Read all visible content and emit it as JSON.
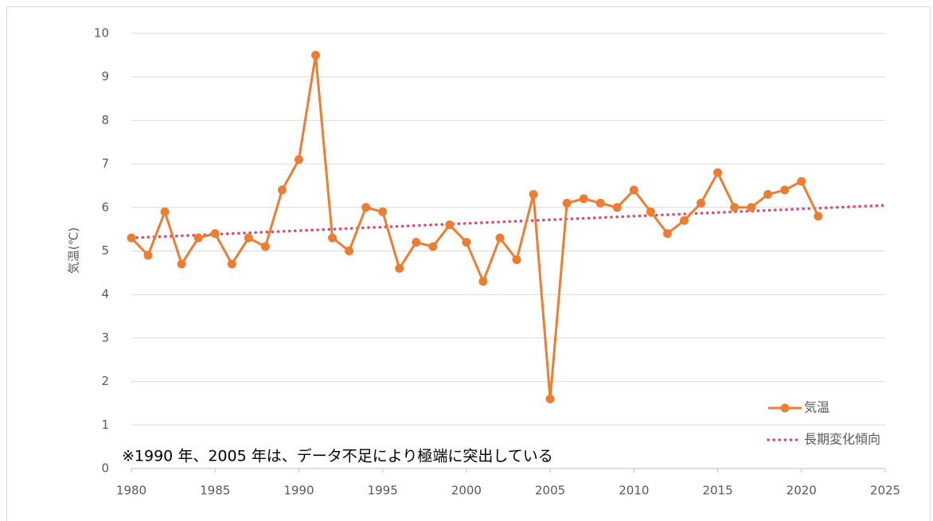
{
  "chart_data": {
    "type": "line",
    "y_label": "気温(℃)",
    "annotation": "※1990 年、2005 年は、データ不足により極端に突出している",
    "x": [
      1980,
      1981,
      1982,
      1983,
      1984,
      1985,
      1986,
      1987,
      1988,
      1989,
      1990,
      1991,
      1992,
      1993,
      1994,
      1995,
      1996,
      1997,
      1998,
      1999,
      2000,
      2001,
      2002,
      2003,
      2004,
      2005,
      2006,
      2007,
      2008,
      2009,
      2010,
      2011,
      2012,
      2013,
      2014,
      2015,
      2016,
      2017,
      2018,
      2019,
      2020,
      2021
    ],
    "series": [
      {
        "name": "気温",
        "color": "#ed7d31",
        "style": "solid",
        "markers": true,
        "values": [
          5.3,
          4.9,
          5.9,
          4.7,
          5.3,
          5.4,
          4.7,
          5.3,
          5.1,
          6.4,
          7.1,
          9.5,
          5.3,
          5.0,
          6.0,
          5.9,
          4.6,
          5.2,
          5.1,
          5.6,
          5.2,
          4.3,
          5.3,
          4.8,
          6.3,
          1.6,
          6.1,
          6.2,
          6.1,
          6.0,
          6.4,
          5.9,
          5.4,
          5.7,
          6.1,
          6.8,
          6.0,
          6.0,
          6.3,
          6.4,
          6.6,
          5.8
        ]
      },
      {
        "name": "長期変化傾向",
        "color": "#e8436a",
        "style": "dotted",
        "markers": false,
        "x": [
          1980,
          2025
        ],
        "values": [
          5.3,
          6.05
        ]
      }
    ],
    "xlim": [
      1980,
      2025
    ],
    "xticks": [
      1980,
      1985,
      1990,
      1995,
      2000,
      2005,
      2010,
      2015,
      2020,
      2025
    ],
    "ylim": [
      0,
      10
    ],
    "yticks": [
      0,
      1,
      2,
      3,
      4,
      5,
      6,
      7,
      8,
      9,
      10
    ],
    "grid": true,
    "legend": "lower right"
  }
}
